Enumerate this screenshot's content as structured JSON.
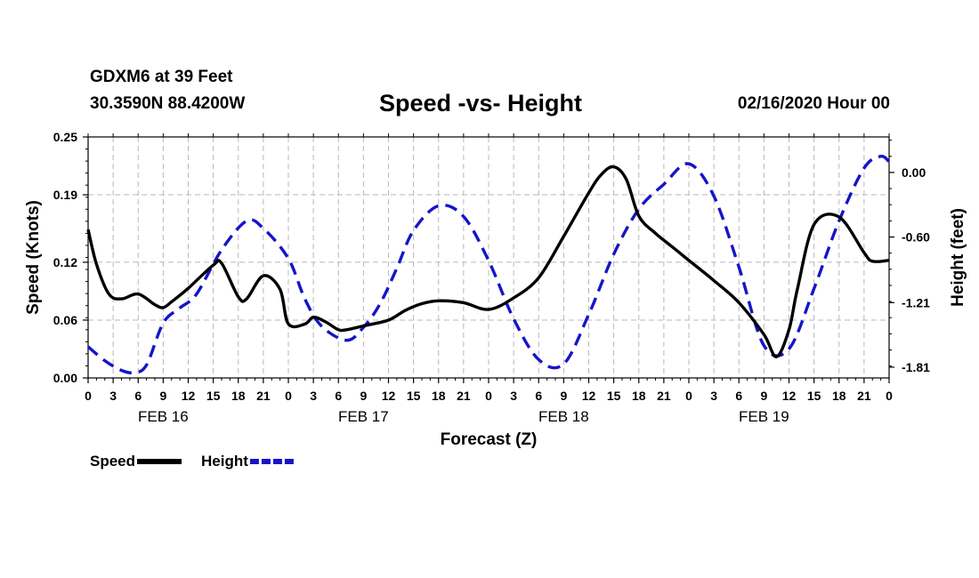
{
  "header": {
    "station": "GDXM6 at 39 Feet",
    "coords": "30.3590N 88.4200W",
    "title": "Speed -vs- Height",
    "datetime": "02/16/2020 Hour 00"
  },
  "chart_data": {
    "type": "line",
    "title": "Speed -vs- Height",
    "xlabel": "Forecast (Z)",
    "ylabel_left": "Speed (Knots)",
    "ylabel_right": "Height (feet)",
    "x_unit": "forecast hour",
    "xlim": [
      0,
      96
    ],
    "ylim_left": [
      0,
      0.25
    ],
    "ylim_right": [
      -1.91,
      0.33
    ],
    "grid": true,
    "x_ticks": [
      0,
      3,
      6,
      9,
      12,
      15,
      18,
      21,
      24,
      27,
      30,
      33,
      36,
      39,
      42,
      45,
      48,
      51,
      54,
      57,
      60,
      63,
      66,
      69,
      72,
      75,
      78,
      81,
      84,
      87,
      90,
      93,
      96
    ],
    "x_tick_labels": [
      "0",
      "3",
      "6",
      "9",
      "12",
      "15",
      "18",
      "21",
      "0",
      "3",
      "6",
      "9",
      "12",
      "15",
      "18",
      "21",
      "0",
      "3",
      "6",
      "9",
      "12",
      "15",
      "18",
      "21",
      "0",
      "3",
      "6",
      "9",
      "12",
      "15",
      "18",
      "21",
      "0"
    ],
    "left_ticks": [
      0.0,
      0.06,
      0.12,
      0.19,
      0.25
    ],
    "left_tick_labels": [
      "0.00",
      "0.06",
      "0.12",
      "0.19",
      "0.25"
    ],
    "right_ticks": [
      0.0,
      -0.6,
      -1.21,
      -1.81
    ],
    "right_tick_labels": [
      "0.00",
      "-0.60",
      "-1.21",
      "-1.81"
    ],
    "date_labels": [
      {
        "x": 9,
        "label": "FEB 16"
      },
      {
        "x": 33,
        "label": "FEB 17"
      },
      {
        "x": 57,
        "label": "FEB 18"
      },
      {
        "x": 81,
        "label": "FEB 19"
      }
    ],
    "legend": [
      {
        "name": "Speed",
        "color": "#000000",
        "style": "solid"
      },
      {
        "name": "Height",
        "color": "#1515c8",
        "style": "dashed"
      }
    ],
    "series": [
      {
        "name": "Speed",
        "axis": "left",
        "color": "#000000",
        "dash": false,
        "x": [
          0,
          1,
          2.5,
          4,
          6,
          8,
          9,
          10,
          12,
          15,
          16,
          18,
          19,
          21,
          23,
          24,
          26,
          27,
          28.5,
          30,
          31,
          33,
          36,
          38,
          40,
          42,
          45,
          48,
          51,
          54,
          57,
          60,
          61.5,
          63,
          64.5,
          66,
          68,
          70,
          72,
          75,
          78,
          81,
          82.5,
          84,
          85,
          87,
          90,
          93,
          94,
          96
        ],
        "values": [
          0.154,
          0.118,
          0.087,
          0.082,
          0.087,
          0.076,
          0.073,
          0.079,
          0.093,
          0.117,
          0.119,
          0.084,
          0.082,
          0.106,
          0.092,
          0.056,
          0.056,
          0.063,
          0.058,
          0.05,
          0.05,
          0.054,
          0.06,
          0.07,
          0.077,
          0.08,
          0.078,
          0.071,
          0.083,
          0.104,
          0.147,
          0.192,
          0.211,
          0.219,
          0.206,
          0.168,
          0.15,
          0.136,
          0.122,
          0.101,
          0.078,
          0.045,
          0.022,
          0.05,
          0.092,
          0.159,
          0.167,
          0.13,
          0.121,
          0.122
        ]
      },
      {
        "name": "Height",
        "axis": "right",
        "color": "#1515c8",
        "dash": true,
        "x": [
          0,
          2,
          4,
          5.5,
          7,
          9,
          11,
          13,
          16,
          19,
          21,
          24,
          26,
          28,
          31,
          33,
          35,
          37,
          39,
          42,
          45,
          48,
          51,
          54,
          57,
          60,
          63,
          66,
          69,
          72,
          75,
          78,
          81,
          84,
          87,
          90,
          93,
          95,
          96
        ],
        "values": [
          -1.62,
          -1.75,
          -1.84,
          -1.86,
          -1.79,
          -1.4,
          -1.26,
          -1.13,
          -0.72,
          -0.45,
          -0.52,
          -0.8,
          -1.18,
          -1.43,
          -1.56,
          -1.44,
          -1.22,
          -0.89,
          -0.54,
          -0.31,
          -0.41,
          -0.82,
          -1.36,
          -1.74,
          -1.78,
          -1.32,
          -0.76,
          -0.34,
          -0.11,
          0.08,
          -0.22,
          -0.88,
          -1.61,
          -1.64,
          -1.08,
          -0.45,
          0.04,
          0.15,
          0.1
        ]
      }
    ]
  }
}
